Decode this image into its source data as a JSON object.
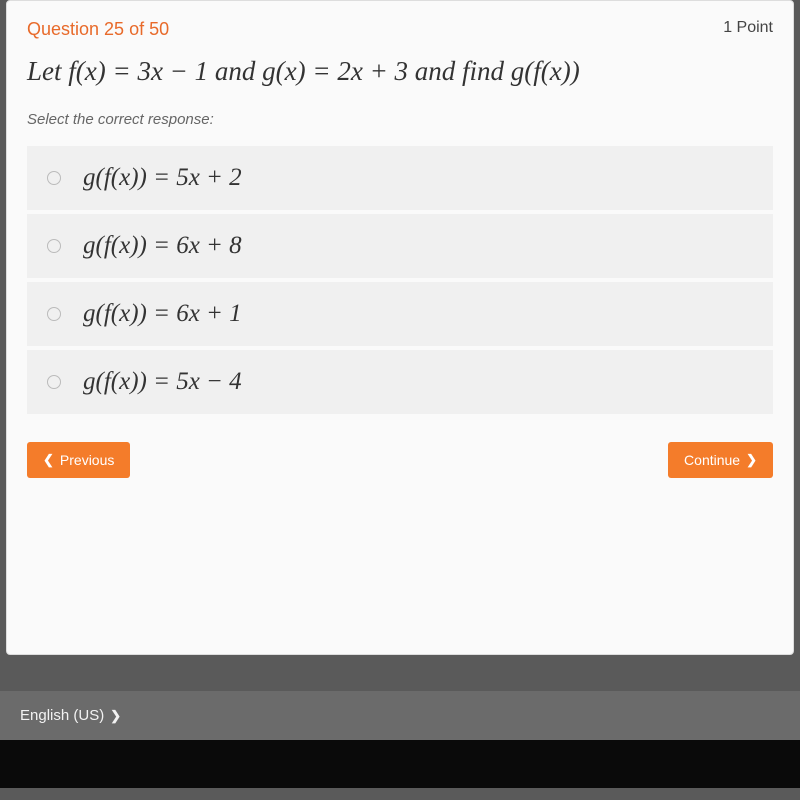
{
  "header": {
    "question_label": "Question 25 of 50",
    "points_label": "1 Point"
  },
  "question": {
    "text": "Let f(x) = 3x − 1 and g(x) = 2x + 3 and find g(f(x))"
  },
  "instruction": "Select the correct response:",
  "options": [
    {
      "text": "g(f(x)) = 5x + 2"
    },
    {
      "text": "g(f(x)) = 6x + 8"
    },
    {
      "text": "g(f(x)) = 6x + 1"
    },
    {
      "text": "g(f(x)) = 5x − 4"
    }
  ],
  "nav": {
    "previous_label": "Previous",
    "continue_label": "Continue"
  },
  "footer": {
    "language_label": "English (US)"
  },
  "colors": {
    "accent": "#e86a2a",
    "button": "#f47c2a",
    "card_bg": "#fafafa",
    "option_bg": "#f0f0f0",
    "footer_bg": "#6b6b6b"
  }
}
